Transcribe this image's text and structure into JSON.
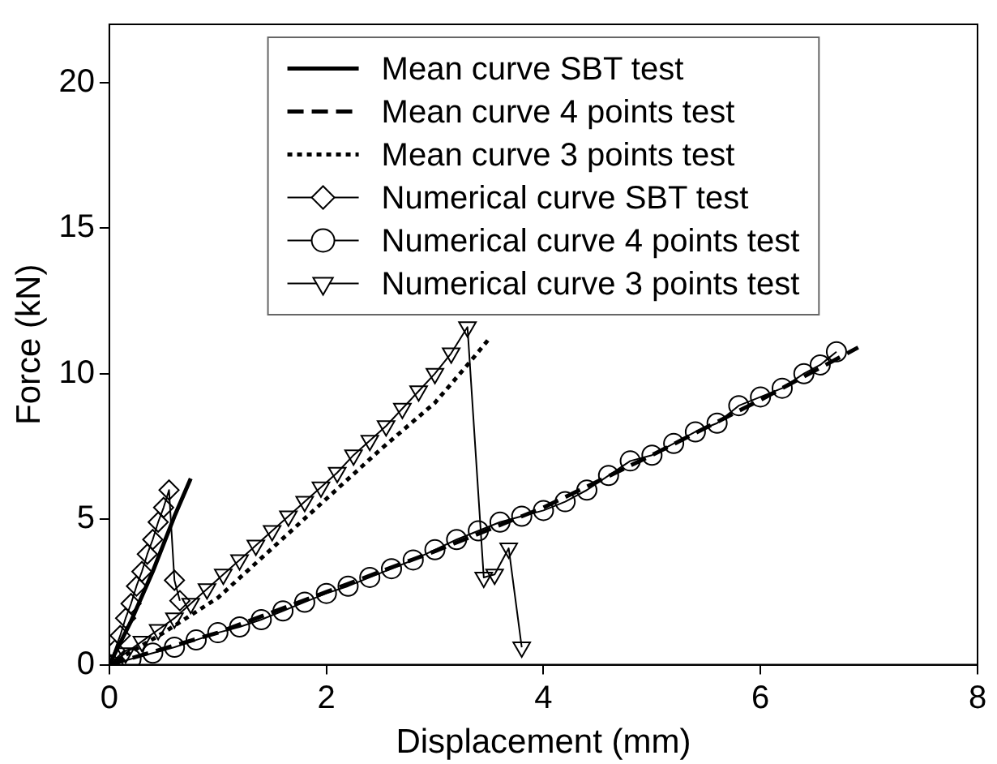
{
  "chart_data": {
    "type": "line",
    "xlabel": "Displacement (mm)",
    "ylabel": "Force (kN)",
    "xlim": [
      0,
      8
    ],
    "xticks": [
      0,
      2,
      4,
      6,
      8
    ],
    "ylim": [
      0,
      22
    ],
    "yticks": [
      0,
      5,
      10,
      15,
      20
    ],
    "grid": false,
    "legend": "top",
    "series": [
      {
        "name": "Mean curve SBT test",
        "color": "#000000",
        "marker": "none",
        "line_style": "solid",
        "x": [
          0,
          0.2,
          0.4,
          0.6,
          0.75
        ],
        "values": [
          0,
          1.5,
          3.2,
          5.1,
          6.4
        ]
      },
      {
        "name": "Mean curve 4 points test",
        "color": "#000000",
        "marker": "none",
        "line_style": "dashed",
        "x": [
          0,
          1,
          2,
          3,
          4,
          5,
          6,
          6.9
        ],
        "values": [
          0,
          1.1,
          2.5,
          3.9,
          5.4,
          7.2,
          9.1,
          10.9
        ]
      },
      {
        "name": "Mean curve 3 points test",
        "color": "#000000",
        "marker": "none",
        "line_style": "dotted",
        "x": [
          0,
          0.5,
          1,
          1.5,
          2,
          2.5,
          3,
          3.3,
          3.5
        ],
        "values": [
          0,
          1.1,
          2.3,
          4.0,
          5.7,
          7.4,
          9.0,
          10.3,
          11.2
        ]
      },
      {
        "name": "Numerical curve SBT test",
        "color": "#000000",
        "marker": "diamond",
        "line_style": "solid",
        "x": [
          0,
          0.05,
          0.1,
          0.15,
          0.2,
          0.25,
          0.3,
          0.35,
          0.4,
          0.45,
          0.5,
          0.55,
          0.6,
          0.65
        ],
        "values": [
          0,
          0.5,
          1.0,
          1.6,
          2.1,
          2.7,
          3.2,
          3.8,
          4.3,
          4.9,
          5.4,
          6.0,
          2.9,
          2.2
        ]
      },
      {
        "name": "Numerical curve 4 points test",
        "color": "#000000",
        "marker": "circle",
        "line_style": "solid",
        "x": [
          0,
          0.2,
          0.4,
          0.6,
          0.8,
          1.0,
          1.2,
          1.4,
          1.6,
          1.8,
          2.0,
          2.2,
          2.4,
          2.6,
          2.8,
          3.0,
          3.2,
          3.4,
          3.6,
          3.8,
          4.0,
          4.2,
          4.4,
          4.6,
          4.8,
          5.0,
          5.2,
          5.4,
          5.6,
          5.8,
          6.0,
          6.2,
          6.4,
          6.55,
          6.7
        ],
        "values": [
          0,
          0.2,
          0.4,
          0.6,
          0.85,
          1.1,
          1.3,
          1.55,
          1.85,
          2.15,
          2.45,
          2.7,
          3.0,
          3.3,
          3.6,
          3.95,
          4.3,
          4.6,
          4.9,
          5.1,
          5.3,
          5.6,
          6.0,
          6.5,
          7.0,
          7.2,
          7.6,
          8.0,
          8.3,
          8.9,
          9.2,
          9.5,
          10.0,
          10.3,
          10.75
        ]
      },
      {
        "name": "Numerical curve 3 points test",
        "color": "#000000",
        "marker": "triangle",
        "line_style": "solid",
        "x": [
          0,
          0.15,
          0.3,
          0.45,
          0.6,
          0.75,
          0.9,
          1.05,
          1.2,
          1.35,
          1.5,
          1.65,
          1.8,
          1.95,
          2.1,
          2.25,
          2.4,
          2.55,
          2.7,
          2.85,
          3.0,
          3.15,
          3.3,
          3.45,
          3.55,
          3.68,
          3.8
        ],
        "values": [
          0,
          0.4,
          0.8,
          1.2,
          1.6,
          2.1,
          2.6,
          3.1,
          3.6,
          4.1,
          4.6,
          5.1,
          5.6,
          6.1,
          6.6,
          7.2,
          7.7,
          8.2,
          8.8,
          9.4,
          10.0,
          10.7,
          11.6,
          3.0,
          3.1,
          4.0,
          0.6
        ]
      }
    ]
  }
}
